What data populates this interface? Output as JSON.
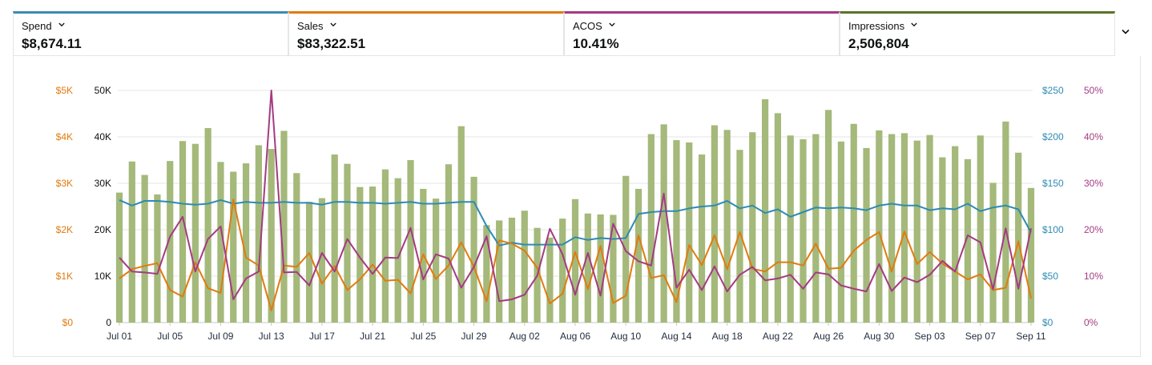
{
  "metrics": [
    {
      "label": "Spend",
      "value": "$8,674.11",
      "color": "#3c8bb3"
    },
    {
      "label": "Sales",
      "value": "$83,322.51",
      "color": "#e07b10"
    },
    {
      "label": "ACOS",
      "value": "10.41%",
      "color": "#a33b82"
    },
    {
      "label": "Impressions",
      "value": "2,506,804",
      "color": "#5b7329"
    }
  ],
  "icons": {
    "metric_dropdown": "chevron-down-icon",
    "expand": "chevron-down-icon"
  },
  "chart_data": {
    "type": "bar+line",
    "title": "",
    "grid": true,
    "legend": "none",
    "x_ticks": [
      "Jul 01",
      "Jul 05",
      "Jul 09",
      "Jul 13",
      "Jul 17",
      "Jul 21",
      "Jul 25",
      "Jul 29",
      "Aug 02",
      "Aug 06",
      "Aug 10",
      "Aug 14",
      "Aug 18",
      "Aug 22",
      "Aug 26",
      "Aug 30",
      "Sep 03",
      "Sep 07",
      "Sep 11"
    ],
    "x_start": "Jul 01",
    "x_end": "Sep 11",
    "axes": {
      "sales": {
        "side": "left-outer",
        "ticks": [
          "$0",
          "$1K",
          "$2K",
          "$3K",
          "$4K",
          "$5K"
        ],
        "range": [
          0,
          5000
        ],
        "color": "#e07b10"
      },
      "impressions": {
        "side": "left-inner",
        "ticks": [
          "0",
          "10K",
          "20K",
          "30K",
          "40K",
          "50K"
        ],
        "range": [
          0,
          50000
        ],
        "color": "#5b7329"
      },
      "spend": {
        "side": "right-inner",
        "ticks": [
          "$0",
          "$50",
          "$100",
          "$150",
          "$200",
          "$250"
        ],
        "range": [
          0,
          250
        ],
        "color": "#3c8bb3"
      },
      "acos": {
        "side": "right-outer",
        "ticks": [
          "0%",
          "10%",
          "20%",
          "30%",
          "40%",
          "50%"
        ],
        "range": [
          0,
          50
        ],
        "color": "#a33b82"
      }
    },
    "series": [
      {
        "name": "Impressions",
        "type": "bar",
        "axis": "impressions",
        "color": "#a4b97a",
        "values": [
          28000,
          34700,
          31800,
          27600,
          34800,
          39100,
          38500,
          41900,
          34600,
          32500,
          34300,
          38200,
          37400,
          41300,
          32200,
          26000,
          26800,
          36200,
          34200,
          29200,
          29300,
          33000,
          31100,
          35000,
          28800,
          26700,
          34100,
          42300,
          31400,
          21000,
          22000,
          22600,
          24100,
          20400,
          18300,
          22400,
          26600,
          23500,
          23300,
          23200,
          31600,
          28800,
          40600,
          42700,
          39300,
          38800,
          36200,
          42500,
          41500,
          37200,
          41000,
          48100,
          45100,
          40300,
          39500,
          40600,
          45800,
          39000,
          42800,
          37600,
          41400,
          40600,
          40800,
          39200,
          40400,
          35600,
          38000,
          35200,
          40300,
          30100,
          43300,
          36600,
          29000
        ]
      },
      {
        "name": "Spend",
        "type": "line",
        "axis": "spend",
        "color": "#2d8bb4",
        "values": [
          132,
          126,
          131,
          131,
          130,
          128,
          127,
          128,
          132,
          128,
          130,
          129,
          129,
          130,
          129,
          129,
          127,
          130,
          130,
          129,
          129,
          128,
          129,
          130,
          128,
          128,
          129,
          130,
          130,
          104,
          83,
          86,
          84,
          84,
          84,
          84,
          92,
          89,
          91,
          90,
          91,
          117,
          119,
          120,
          120,
          123,
          125,
          126,
          131,
          123,
          126,
          118,
          122,
          114,
          119,
          124,
          123,
          124,
          123,
          121,
          126,
          128,
          126,
          126,
          121,
          123,
          122,
          128,
          120,
          124,
          126,
          122,
          97
        ]
      },
      {
        "name": "Sales",
        "type": "line",
        "axis": "sales",
        "color": "#e07b10",
        "values": [
          950,
          1150,
          1220,
          1280,
          700,
          560,
          1300,
          740,
          640,
          2650,
          1400,
          1230,
          260,
          1230,
          1200,
          1500,
          840,
          1220,
          700,
          930,
          1250,
          900,
          920,
          630,
          1470,
          940,
          1230,
          1730,
          1200,
          460,
          1770,
          1700,
          1550,
          1180,
          410,
          620,
          1520,
          720,
          1650,
          420,
          580,
          1880,
          960,
          1020,
          440,
          1670,
          1240,
          1880,
          1150,
          1950,
          1160,
          1100,
          1300,
          1300,
          1230,
          1700,
          1160,
          1180,
          1550,
          1780,
          1950,
          1100,
          1960,
          1260,
          1520,
          1270,
          1100,
          930,
          1040,
          700,
          750,
          1750,
          520
        ]
      },
      {
        "name": "ACOS",
        "type": "line",
        "axis": "acos",
        "color": "#a33b82",
        "values": [
          14,
          11,
          10.8,
          10.5,
          18.5,
          22.8,
          11,
          18,
          20.7,
          5,
          9.5,
          11,
          50,
          10.8,
          10.9,
          8,
          15,
          11,
          18,
          14,
          10.5,
          14,
          13.9,
          20.4,
          9.3,
          14.7,
          13.8,
          7.5,
          12,
          18.6,
          4.6,
          5,
          6,
          10.1,
          20.2,
          14.7,
          6,
          15,
          5.8,
          21.3,
          15.4,
          13.2,
          12.3,
          27.8,
          7.5,
          11.4,
          7,
          12.1,
          6.7,
          10.3,
          12,
          9.1,
          9.5,
          10.3,
          7.3,
          10.8,
          10.4,
          8,
          7.3,
          6.7,
          12.6,
          6.8,
          9.7,
          8.7,
          10.3,
          13.3,
          11,
          18.8,
          17.3,
          7.2,
          20.3,
          7.3,
          20.3
        ]
      }
    ]
  }
}
